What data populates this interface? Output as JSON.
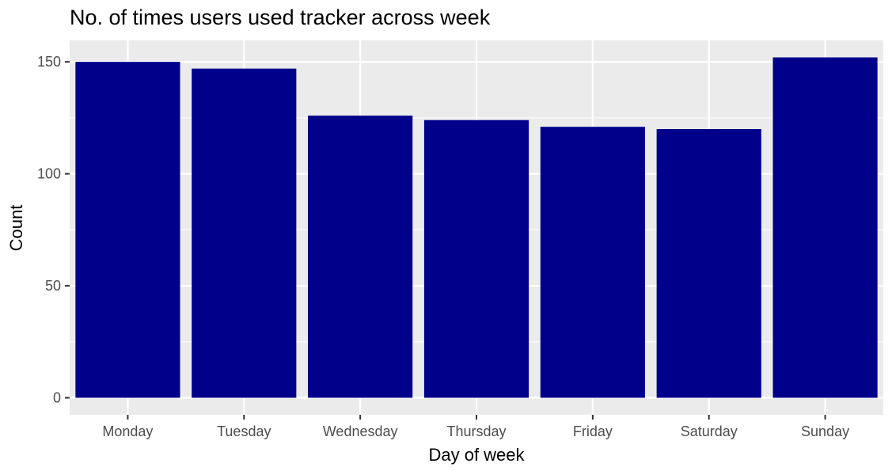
{
  "chart_data": {
    "type": "bar",
    "title": "No. of times users used tracker across week",
    "xlabel": "Day of week",
    "ylabel": "Count",
    "categories": [
      "Monday",
      "Tuesday",
      "Wednesday",
      "Thursday",
      "Friday",
      "Saturday",
      "Sunday"
    ],
    "values": [
      150,
      147,
      126,
      124,
      121,
      120,
      152
    ],
    "ylim": [
      -7.6,
      159.6
    ],
    "yticks": [
      0,
      50,
      100,
      150
    ],
    "grid": true,
    "legend": "none",
    "colors": {
      "bar": "#00008B",
      "panel": "#EBEBEB",
      "grid": "#FFFFFF",
      "tick_mark": "#333333",
      "tick_label": "#4D4D4D"
    }
  }
}
